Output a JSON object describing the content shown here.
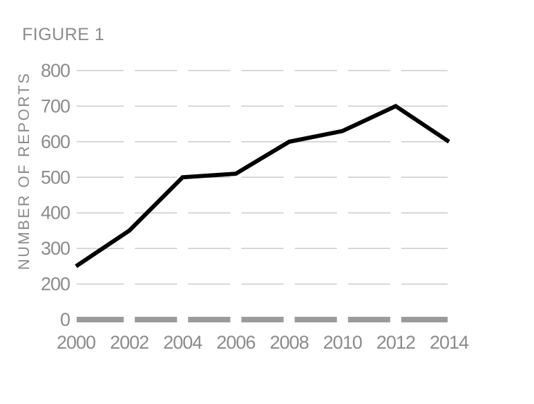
{
  "chart_data": {
    "type": "line",
    "title": "FIGURE 1",
    "xlabel": "",
    "ylabel": "NUMBER OF REPORTS",
    "x": [
      2000,
      2002,
      2004,
      2006,
      2008,
      2010,
      2012,
      2014
    ],
    "x_tick_labels": [
      "2000",
      "2002",
      "2004",
      "2006",
      "2008",
      "2010",
      "2012",
      "2014"
    ],
    "series": [
      {
        "name": "Number of reports",
        "values": [
          250,
          350,
          500,
          510,
          600,
          630,
          700,
          600
        ]
      }
    ],
    "yticks": [
      0,
      200,
      300,
      400,
      500,
      600,
      700,
      800
    ],
    "ytick_labels": [
      "0",
      "200",
      "300",
      "400",
      "500",
      "600",
      "700",
      "800"
    ],
    "ylim": [
      0,
      800
    ],
    "grid": "horizontal-dashed",
    "legend": "none"
  },
  "colors": {
    "background": "#ffffff",
    "line": "#000000",
    "text": "#8b8b8b",
    "gridline": "#cbcbcb",
    "baseline": "#9b9b9b"
  }
}
